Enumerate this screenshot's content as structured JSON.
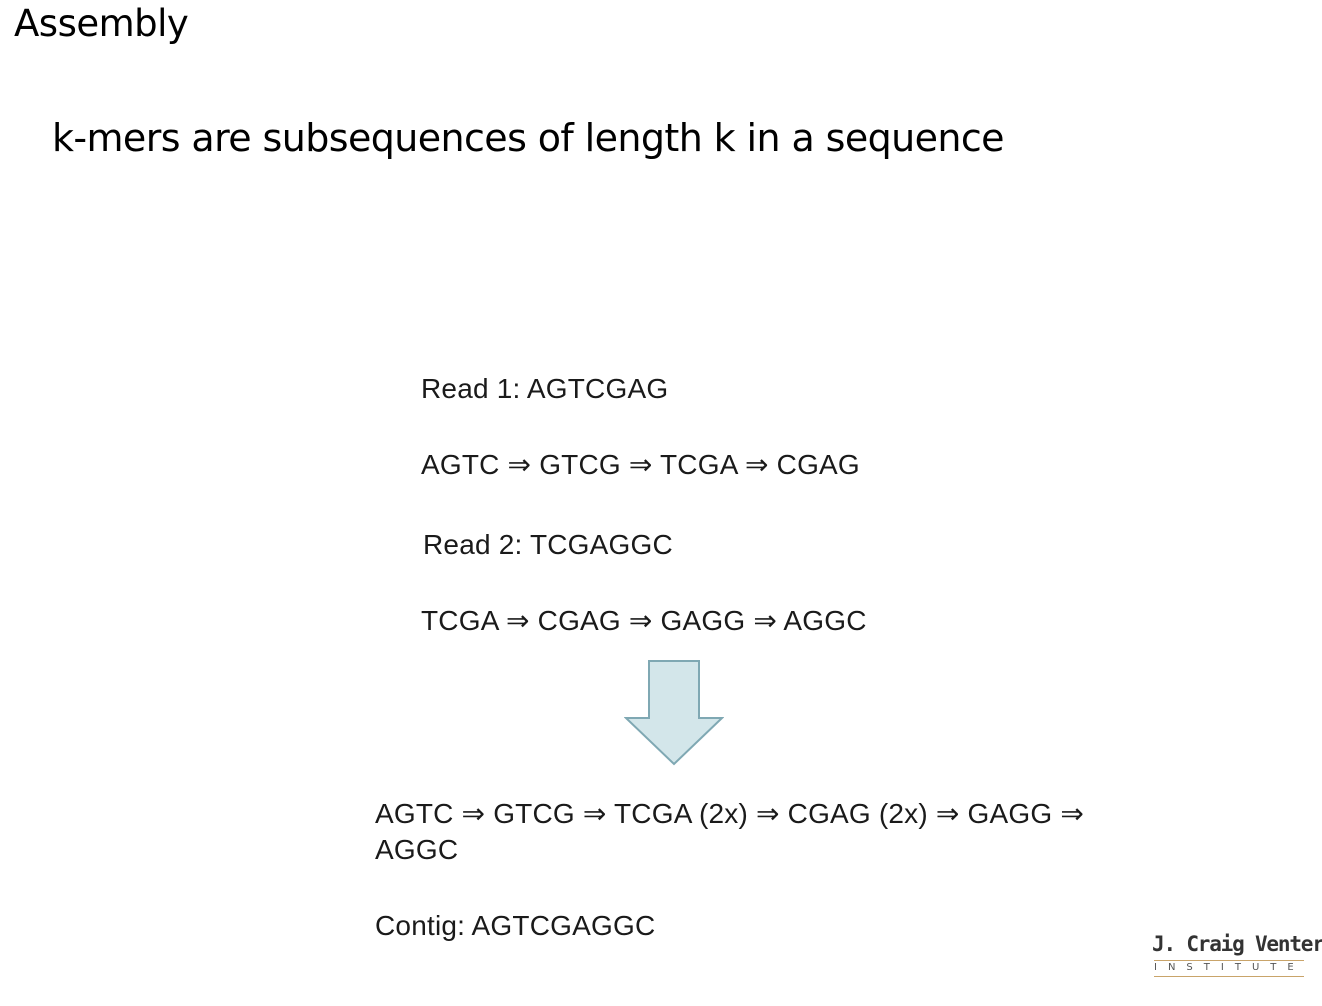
{
  "slide": {
    "title": "Assembly",
    "subtitle": "k-mers are subsequences of length k in a sequence"
  },
  "figure": {
    "read1_label": "Read 1: AGTCGAG",
    "read1_kmers": "AGTC ⇒ GTCG ⇒ TCGA ⇒ CGAG",
    "read2_label": "Read 2:  TCGAGGC",
    "read2_kmers": "TCGA ⇒ CGAG ⇒ GAGG ⇒ AGGC",
    "arrow_color": "#d3e6ea",
    "arrow_stroke": "#7fa8b3",
    "merged_line1": "AGTC ⇒ GTCG ⇒ TCGA (2x) ⇒ CGAG (2x) ⇒ GAGG ⇒",
    "merged_line2": "AGGC",
    "contig": "Contig: AGTCGAGGC"
  },
  "logo": {
    "name": "J. Craig Venter",
    "sub": "INSTITUTE"
  }
}
